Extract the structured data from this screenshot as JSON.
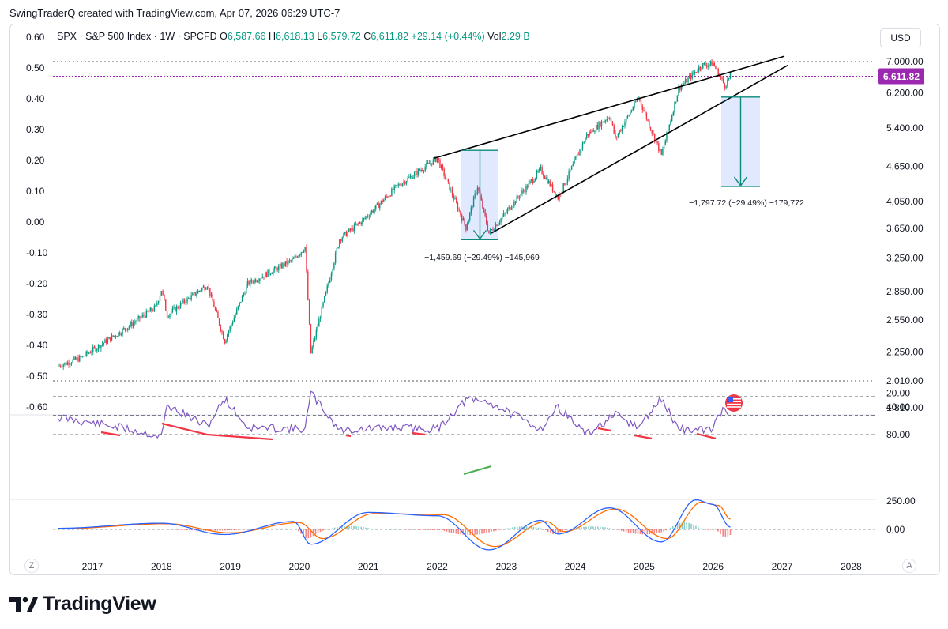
{
  "header": {
    "credit": "SwingTraderQ created with TradingView.com, Apr 07, 2026 06:29 UTC-7",
    "symbol_line": "SPX · S&P 500 Index · 1W · SPCFD",
    "open_label": "O",
    "open_value": "6,587.66",
    "high_label": "H",
    "high_value": "6,618.13",
    "low_label": "L",
    "low_value": "6,579.72",
    "close_label": "C",
    "close_value": "6,611.82",
    "change": "+29.14 (+0.44%)",
    "vol_label": "Vol",
    "vol_value": "2.29 B",
    "currency_button": "USD"
  },
  "colors": {
    "up": "#089981",
    "down": "#f23645",
    "rsi": "#7e57c2",
    "macd": "#2962ff",
    "signal": "#ff6d00",
    "price_tag": "#9c27b0",
    "measure": "#0a8a78"
  },
  "icons": {
    "brand": "tradingview-logo-icon",
    "flag": "us-flag-icon"
  },
  "chart_data": {
    "type": "line",
    "title": "SPX · S&P 500 Index · 1W · SPCFD",
    "x_ticks": [
      "2017",
      "2018",
      "2019",
      "2020",
      "2021",
      "2022",
      "2023",
      "2024",
      "2025",
      "2026",
      "2027",
      "2028"
    ],
    "y_right_ticks": [
      "7,000.00",
      "6,200.00",
      "5,400.00",
      "4,650.00",
      "4,050.00",
      "3,650.00",
      "3,250.00",
      "2,850.00",
      "2,550.00",
      "2,250.00",
      "2,010.00",
      "1,810.00"
    ],
    "y_left_ticks": [
      "0.60",
      "0.50",
      "0.40",
      "0.30",
      "0.20",
      "0.10",
      "0.00",
      "-0.10",
      "-0.20",
      "-0.30",
      "-0.40",
      "-0.50",
      "-0.60"
    ],
    "y_scale": "log",
    "last_price": "6,611.82",
    "price_series": [
      {
        "t": "2016-07",
        "v": 2130
      },
      {
        "t": "2016-11",
        "v": 2200
      },
      {
        "t": "2017-06",
        "v": 2440
      },
      {
        "t": "2017-12",
        "v": 2680
      },
      {
        "t": "2018-01",
        "v": 2870
      },
      {
        "t": "2018-02",
        "v": 2600
      },
      {
        "t": "2018-09",
        "v": 2930
      },
      {
        "t": "2018-12",
        "v": 2350
      },
      {
        "t": "2019-04",
        "v": 2940
      },
      {
        "t": "2019-12",
        "v": 3230
      },
      {
        "t": "2020-02",
        "v": 3390
      },
      {
        "t": "2020-03",
        "v": 2240
      },
      {
        "t": "2020-08",
        "v": 3500
      },
      {
        "t": "2020-12",
        "v": 3760
      },
      {
        "t": "2021-06",
        "v": 4300
      },
      {
        "t": "2022-01",
        "v": 4800
      },
      {
        "t": "2022-06",
        "v": 3660
      },
      {
        "t": "2022-08",
        "v": 4300
      },
      {
        "t": "2022-10",
        "v": 3580
      },
      {
        "t": "2023-07",
        "v": 4590
      },
      {
        "t": "2023-10",
        "v": 4110
      },
      {
        "t": "2024-03",
        "v": 5250
      },
      {
        "t": "2024-07",
        "v": 5670
      },
      {
        "t": "2024-08",
        "v": 5180
      },
      {
        "t": "2024-12",
        "v": 6090
      },
      {
        "t": "2025-04",
        "v": 4850
      },
      {
        "t": "2025-07",
        "v": 6300
      },
      {
        "t": "2025-11",
        "v": 6900
      },
      {
        "t": "2026-01",
        "v": 6950
      },
      {
        "t": "2026-03",
        "v": 6380
      },
      {
        "t": "2026-04",
        "v": 6612
      }
    ],
    "measures": [
      {
        "label": "−1,459.69 (−29.49%) −145,969",
        "from": 4950,
        "to": 3490
      },
      {
        "label": "−1,797.72 (−29.49%) −179,772",
        "from": 6096,
        "to": 4298
      }
    ],
    "rsi": {
      "ticks": [
        "80.00",
        "40.00",
        "20.00"
      ],
      "series": [
        {
          "t": "2016-07",
          "v": 55
        },
        {
          "t": "2017-06",
          "v": 70
        },
        {
          "t": "2018-01",
          "v": 83
        },
        {
          "t": "2018-02",
          "v": 38
        },
        {
          "t": "2018-09",
          "v": 68
        },
        {
          "t": "2018-12",
          "v": 28
        },
        {
          "t": "2019-04",
          "v": 70
        },
        {
          "t": "2020-02",
          "v": 72
        },
        {
          "t": "2020-03",
          "v": 20
        },
        {
          "t": "2020-08",
          "v": 74
        },
        {
          "t": "2021-06",
          "v": 70
        },
        {
          "t": "2022-01",
          "v": 72
        },
        {
          "t": "2022-06",
          "v": 30
        },
        {
          "t": "2022-10",
          "v": 33
        },
        {
          "t": "2023-07",
          "v": 72
        },
        {
          "t": "2023-10",
          "v": 40
        },
        {
          "t": "2024-03",
          "v": 80
        },
        {
          "t": "2024-08",
          "v": 52
        },
        {
          "t": "2024-12",
          "v": 70
        },
        {
          "t": "2025-04",
          "v": 28
        },
        {
          "t": "2025-07",
          "v": 72
        },
        {
          "t": "2025-11",
          "v": 74
        },
        {
          "t": "2026-01",
          "v": 70
        },
        {
          "t": "2026-03",
          "v": 38
        },
        {
          "t": "2026-04",
          "v": 52
        }
      ]
    },
    "macd": {
      "ticks": [
        "250.00",
        "0.00"
      ],
      "macd_series": [
        {
          "t": "2016-07",
          "v": 10
        },
        {
          "t": "2018-01",
          "v": 55
        },
        {
          "t": "2018-12",
          "v": -45
        },
        {
          "t": "2019-12",
          "v": 70
        },
        {
          "t": "2020-03",
          "v": -130
        },
        {
          "t": "2021-01",
          "v": 150
        },
        {
          "t": "2022-01",
          "v": 120
        },
        {
          "t": "2022-10",
          "v": -180
        },
        {
          "t": "2023-07",
          "v": 80
        },
        {
          "t": "2023-10",
          "v": -40
        },
        {
          "t": "2024-07",
          "v": 190
        },
        {
          "t": "2025-04",
          "v": -110
        },
        {
          "t": "2025-10",
          "v": 260
        },
        {
          "t": "2026-01",
          "v": 220
        },
        {
          "t": "2026-04",
          "v": 20
        }
      ],
      "signal_series": [
        {
          "t": "2016-07",
          "v": 5
        },
        {
          "t": "2018-02",
          "v": 50
        },
        {
          "t": "2019-01",
          "v": -30
        },
        {
          "t": "2020-01",
          "v": 60
        },
        {
          "t": "2020-05",
          "v": -80
        },
        {
          "t": "2021-02",
          "v": 140
        },
        {
          "t": "2022-02",
          "v": 130
        },
        {
          "t": "2022-11",
          "v": -150
        },
        {
          "t": "2023-08",
          "v": 70
        },
        {
          "t": "2023-11",
          "v": -20
        },
        {
          "t": "2024-08",
          "v": 180
        },
        {
          "t": "2025-05",
          "v": -80
        },
        {
          "t": "2025-11",
          "v": 240
        },
        {
          "t": "2026-02",
          "v": 210
        },
        {
          "t": "2026-04",
          "v": 90
        }
      ]
    },
    "grid": false
  },
  "corners": {
    "left": "Z",
    "right": "A"
  },
  "brand": {
    "name": "TradingView"
  }
}
